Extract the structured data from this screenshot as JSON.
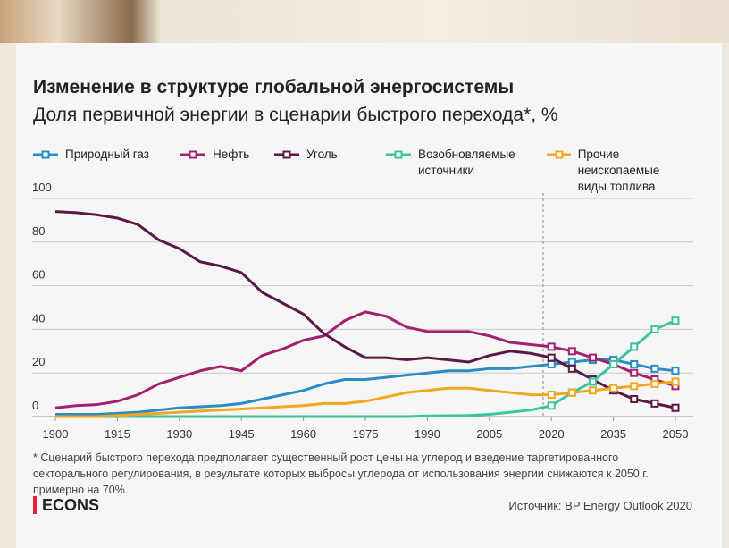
{
  "chart_data": {
    "type": "line",
    "title": "Изменение в структуре глобальной энергосистемы",
    "subtitle": "Доля первичной энергии в сценарии быстрого перехода*, %",
    "x": [
      1900,
      1905,
      1910,
      1915,
      1920,
      1925,
      1930,
      1935,
      1940,
      1945,
      1950,
      1955,
      1960,
      1965,
      1970,
      1975,
      1980,
      1985,
      1990,
      1995,
      2000,
      2005,
      2010,
      2015,
      2020,
      2025,
      2030,
      2035,
      2040,
      2045,
      2050
    ],
    "series": [
      {
        "name": "Природный газ",
        "color": "#2b8cc4",
        "values": [
          1,
          1,
          1,
          1.5,
          2,
          3,
          4,
          4.5,
          5,
          6,
          8,
          10,
          12,
          15,
          17,
          17,
          18,
          19,
          20,
          21,
          21,
          22,
          22,
          23,
          24,
          25,
          26,
          26,
          24,
          22,
          21
        ]
      },
      {
        "name": "Нефть",
        "color": "#a3206e",
        "values": [
          4,
          5,
          5.5,
          7,
          10,
          15,
          18,
          21,
          23,
          21,
          28,
          31,
          35,
          37,
          44,
          48,
          46,
          41,
          39,
          39,
          39,
          37,
          34,
          33,
          32,
          30,
          27,
          24,
          20,
          17,
          14
        ]
      },
      {
        "name": "Уголь",
        "color": "#5a1846",
        "values": [
          94,
          93.5,
          92.5,
          91,
          88,
          81,
          77,
          71,
          69,
          66,
          57,
          52,
          47,
          38,
          32,
          27,
          27,
          26,
          27,
          26,
          25,
          28,
          30,
          29,
          27,
          22,
          17,
          12,
          8,
          6,
          4
        ]
      },
      {
        "name": "Возобновляемые\nисточники",
        "color": "#3cc3a0",
        "values": [
          0,
          0,
          0,
          0,
          0,
          0,
          0,
          0,
          0,
          0,
          0,
          0,
          0,
          0,
          0,
          0,
          0,
          0,
          0.3,
          0.4,
          0.5,
          1,
          2,
          3,
          5,
          11,
          16,
          24,
          32,
          40,
          44
        ]
      },
      {
        "name": "Прочие неископаемые\nвиды топлива",
        "color": "#f0a820",
        "values": [
          0,
          0,
          0,
          0.5,
          1,
          1.5,
          2,
          2.5,
          3,
          3.5,
          4,
          4.5,
          5,
          6,
          6,
          7,
          9,
          11,
          12,
          13,
          13,
          12,
          11,
          10,
          10,
          11,
          12,
          13,
          14,
          15,
          16
        ]
      }
    ],
    "xlim": [
      1900,
      2050
    ],
    "xticks": [
      1900,
      1915,
      1930,
      1945,
      1960,
      1975,
      1990,
      2005,
      2020,
      2035,
      2050
    ],
    "ylim": [
      0,
      100
    ],
    "yticks": [
      0,
      20,
      40,
      60,
      80,
      100
    ],
    "grid": true,
    "divider_x": 2018,
    "footnote": "* Сценарий быстрого перехода предполагает существенный рост цены на углерод и введение таргетированного секторального регулирования, в результате которых выбросы углерода от использования энергии снижаются к 2050 г. примерно на 70%.",
    "brand": "ECONS",
    "source": "Источник: BP Energy Outlook 2020"
  }
}
